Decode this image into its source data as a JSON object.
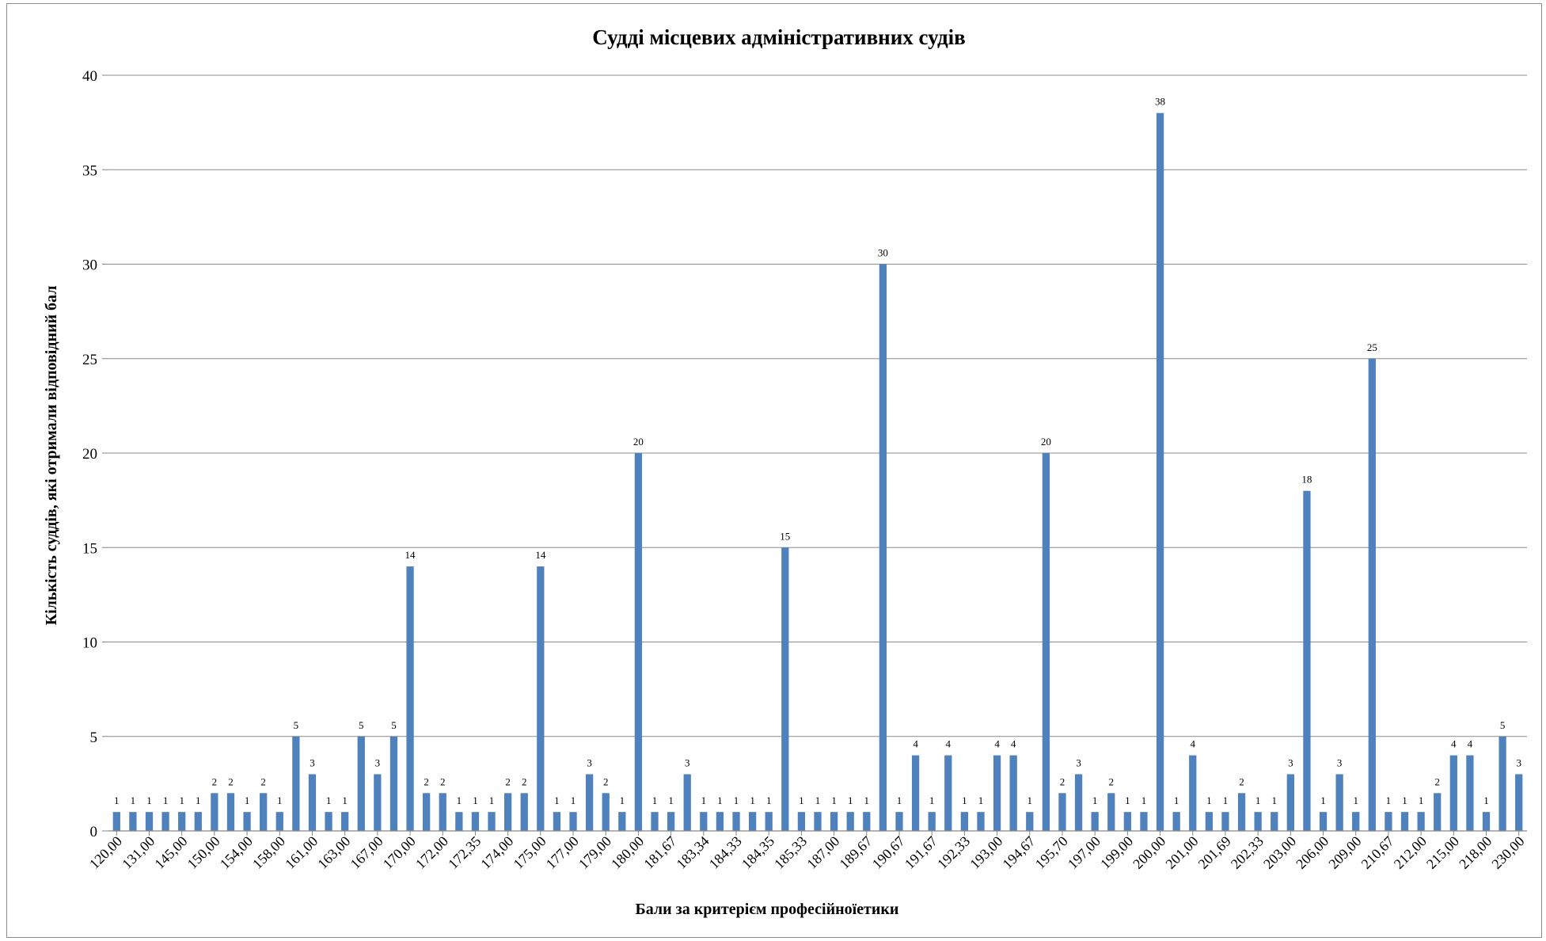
{
  "chart_data": {
    "type": "bar",
    "title": "Судді місцевих адміністративних  судів",
    "xlabel": "Бали за критерієм професійноїетики",
    "ylabel": "Кількість суддів, які отримали відповідний бал",
    "ylim": [
      0,
      40
    ],
    "yticks": [
      0,
      5,
      10,
      15,
      20,
      25,
      30,
      35,
      40
    ],
    "grid": true,
    "bar_color": "#4f81bd",
    "x_tick_labels": [
      "120,00",
      "131,00",
      "145,00",
      "150,00",
      "154,00",
      "158,00",
      "161,00",
      "163,00",
      "167,00",
      "170,00",
      "172,00",
      "172,35",
      "174,00",
      "175,00",
      "177,00",
      "179,00",
      "180,00",
      "181,67",
      "183,34",
      "184,33",
      "184,35",
      "185,33",
      "187,00",
      "189,67",
      "190,67",
      "191,67",
      "192,33",
      "193,00",
      "194,67",
      "195,70",
      "197,00",
      "199,00",
      "200,00",
      "201,00",
      "201,69",
      "202,33",
      "203,00",
      "206,00",
      "209,00",
      "210,67",
      "212,00",
      "215,00",
      "218,00",
      "230,00"
    ],
    "values": [
      1,
      1,
      1,
      1,
      1,
      1,
      2,
      2,
      1,
      2,
      1,
      5,
      3,
      1,
      1,
      5,
      3,
      5,
      14,
      2,
      2,
      1,
      1,
      1,
      2,
      2,
      14,
      1,
      1,
      3,
      2,
      1,
      20,
      1,
      1,
      3,
      1,
      1,
      1,
      1,
      1,
      15,
      1,
      1,
      1,
      1,
      1,
      30,
      1,
      4,
      1,
      4,
      1,
      1,
      4,
      4,
      1,
      20,
      2,
      3,
      1,
      2,
      1,
      1,
      38,
      1,
      4,
      1,
      1,
      2,
      1,
      1,
      3,
      18,
      1,
      3,
      1,
      25,
      1,
      1,
      1,
      2,
      4,
      4,
      1,
      5,
      3
    ]
  }
}
